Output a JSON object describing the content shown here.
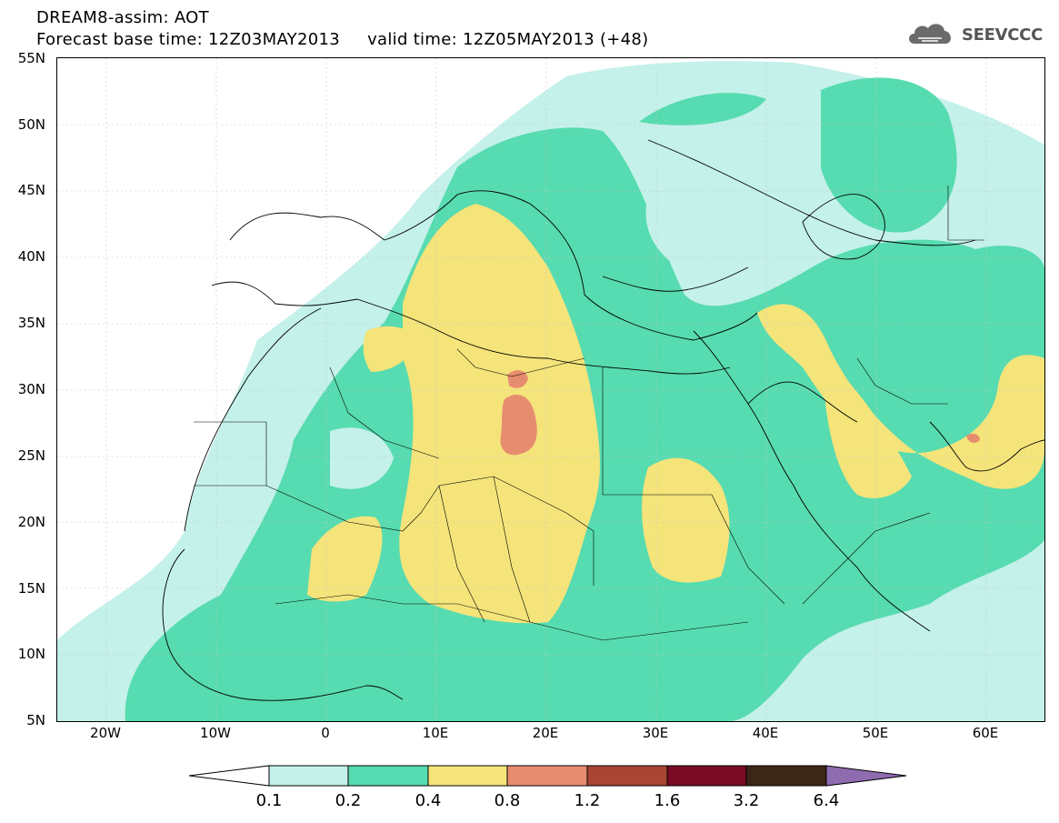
{
  "header": {
    "line1": "DREAM8-assim: AOT",
    "line2": "Forecast base time: 12Z03MAY2013     valid time: 12Z05MAY2013 (+48)"
  },
  "brand": {
    "name": "SEEVCCC",
    "icon": "cloud-logo-icon"
  },
  "map": {
    "y_labels": [
      "55N",
      "50N",
      "45N",
      "40N",
      "35N",
      "30N",
      "25N",
      "20N",
      "15N",
      "10N",
      "5N"
    ],
    "x_labels": [
      "20W",
      "10W",
      "0",
      "10E",
      "20E",
      "30E",
      "40E",
      "50E",
      "60E"
    ]
  },
  "legend": {
    "labels": [
      "0.1",
      "0.2",
      "0.4",
      "0.8",
      "1.2",
      "1.6",
      "3.2",
      "6.4"
    ],
    "colors": [
      "#ffffff",
      "#c4f1ea",
      "#57dbb0",
      "#f4e47a",
      "#e78d6f",
      "#a84535",
      "#7b0a26",
      "#3c2617",
      "#8f6cb0"
    ]
  }
}
